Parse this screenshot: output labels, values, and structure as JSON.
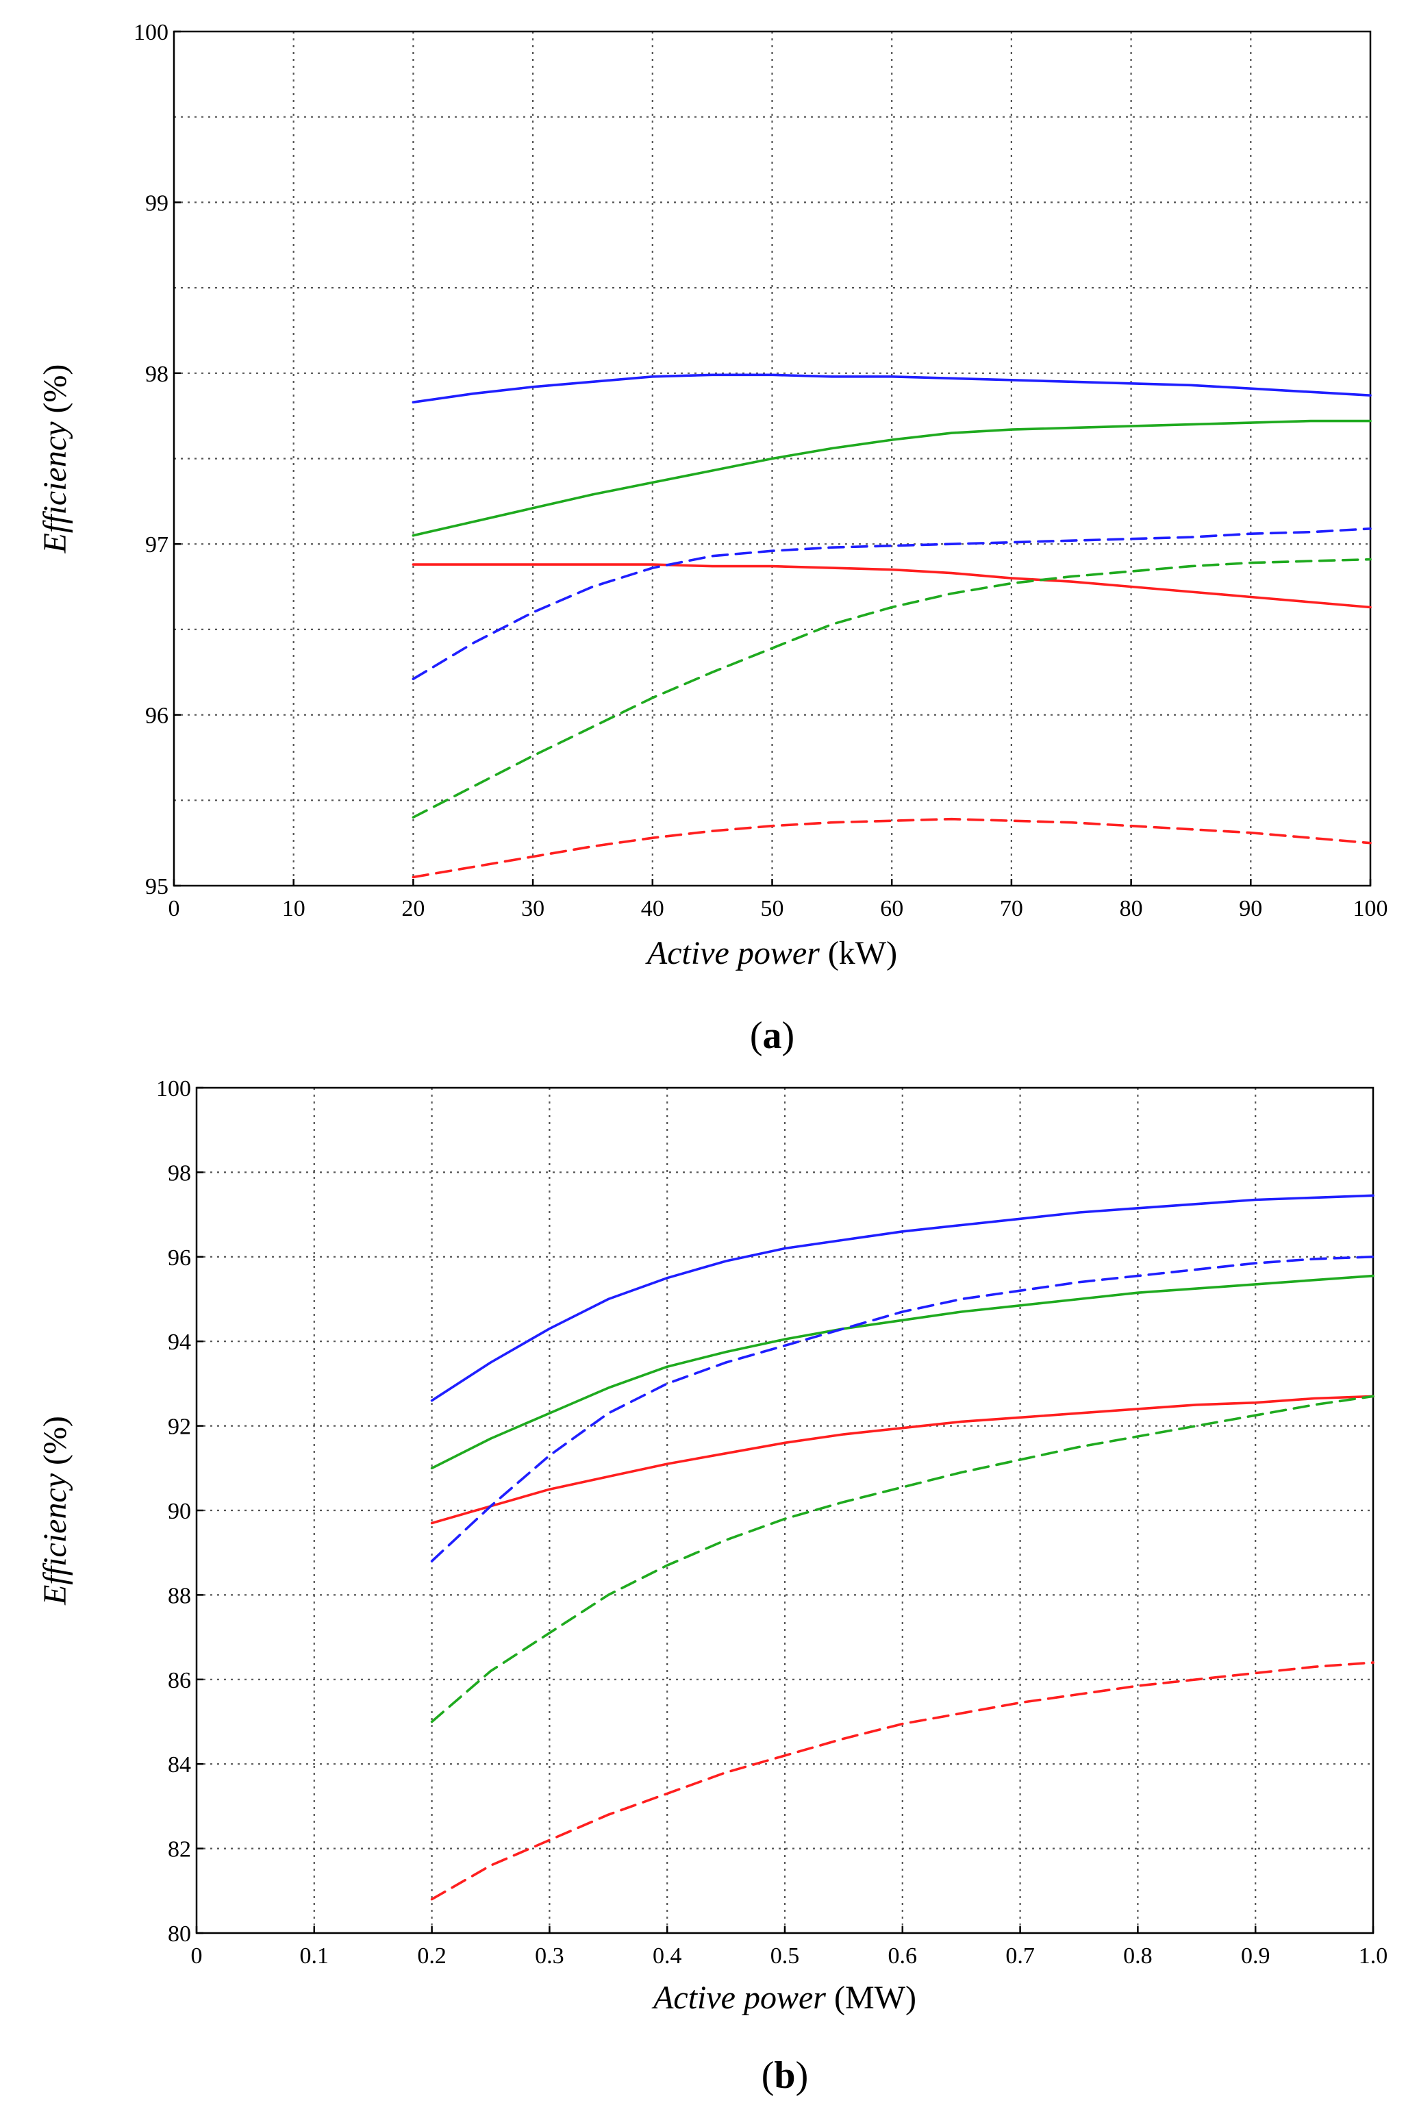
{
  "chart_data": [
    {
      "type": "line",
      "panel_label": "a",
      "xlabel": {
        "italic": "Active power",
        "unit": "(kW)"
      },
      "ylabel": {
        "italic": "Efficiency",
        "unit": "(%)"
      },
      "xlim": [
        0,
        100
      ],
      "ylim": [
        95,
        100
      ],
      "xticks": [
        "0",
        "10",
        "20",
        "30",
        "40",
        "50",
        "60",
        "70",
        "80",
        "90",
        "100"
      ],
      "yticks": [
        "95",
        "96",
        "97",
        "98",
        "99",
        "100"
      ],
      "grid": true,
      "series": [
        {
          "color": "#1f1fff",
          "style": "solid",
          "x": [
            20,
            25,
            30,
            35,
            40,
            45,
            50,
            55,
            60,
            65,
            70,
            75,
            80,
            85,
            90,
            95,
            100
          ],
          "y": [
            97.83,
            97.88,
            97.92,
            97.95,
            97.98,
            97.99,
            97.99,
            97.98,
            97.98,
            97.97,
            97.96,
            97.95,
            97.94,
            97.93,
            97.91,
            97.89,
            97.87
          ]
        },
        {
          "color": "#1faa1f",
          "style": "solid",
          "x": [
            20,
            25,
            30,
            35,
            40,
            45,
            50,
            55,
            60,
            65,
            70,
            75,
            80,
            85,
            90,
            95,
            100
          ],
          "y": [
            97.05,
            97.13,
            97.21,
            97.29,
            97.36,
            97.43,
            97.5,
            97.56,
            97.61,
            97.65,
            97.67,
            97.68,
            97.69,
            97.7,
            97.71,
            97.72,
            97.72
          ]
        },
        {
          "color": "#ff1f1f",
          "style": "solid",
          "x": [
            20,
            25,
            30,
            35,
            40,
            45,
            50,
            55,
            60,
            65,
            70,
            75,
            80,
            85,
            90,
            95,
            100
          ],
          "y": [
            96.88,
            96.88,
            96.88,
            96.88,
            96.88,
            96.87,
            96.87,
            96.86,
            96.85,
            96.83,
            96.8,
            96.78,
            96.75,
            96.72,
            96.69,
            96.66,
            96.63
          ]
        },
        {
          "color": "#1f1fff",
          "style": "dashed",
          "x": [
            20,
            25,
            30,
            35,
            40,
            45,
            50,
            55,
            60,
            65,
            70,
            75,
            80,
            85,
            90,
            95,
            100
          ],
          "y": [
            96.21,
            96.42,
            96.6,
            96.75,
            96.86,
            96.93,
            96.96,
            96.98,
            96.99,
            97.0,
            97.01,
            97.02,
            97.03,
            97.04,
            97.06,
            97.07,
            97.09
          ]
        },
        {
          "color": "#1faa1f",
          "style": "dashed",
          "x": [
            20,
            25,
            30,
            35,
            40,
            45,
            50,
            55,
            60,
            65,
            70,
            75,
            80,
            85,
            90,
            95,
            100
          ],
          "y": [
            95.4,
            95.58,
            95.76,
            95.93,
            96.1,
            96.25,
            96.39,
            96.53,
            96.63,
            96.71,
            96.77,
            96.81,
            96.84,
            96.87,
            96.89,
            96.9,
            96.91
          ]
        },
        {
          "color": "#ff1f1f",
          "style": "dashed",
          "x": [
            20,
            25,
            30,
            35,
            40,
            45,
            50,
            55,
            60,
            65,
            70,
            75,
            80,
            85,
            90,
            95,
            100
          ],
          "y": [
            95.05,
            95.11,
            95.17,
            95.23,
            95.28,
            95.32,
            95.35,
            95.37,
            95.38,
            95.39,
            95.38,
            95.37,
            95.35,
            95.33,
            95.31,
            95.28,
            95.25
          ]
        }
      ]
    },
    {
      "type": "line",
      "panel_label": "b",
      "xlabel": {
        "italic": "Active power",
        "unit": "(MW)"
      },
      "ylabel": {
        "italic": "Efficiency",
        "unit": "(%)"
      },
      "xlim": [
        0,
        1.0
      ],
      "ylim": [
        80,
        100
      ],
      "xticks": [
        "0",
        "0.1",
        "0.2",
        "0.3",
        "0.4",
        "0.5",
        "0.6",
        "0.7",
        "0.8",
        "0.9",
        "1.0"
      ],
      "yticks": [
        "80",
        "82",
        "84",
        "86",
        "88",
        "90",
        "92",
        "94",
        "96",
        "98",
        "100"
      ],
      "grid": true,
      "series": [
        {
          "color": "#1f1fff",
          "style": "solid",
          "x": [
            0.2,
            0.25,
            0.3,
            0.35,
            0.4,
            0.45,
            0.5,
            0.55,
            0.6,
            0.65,
            0.7,
            0.75,
            0.8,
            0.85,
            0.9,
            0.95,
            1.0
          ],
          "y": [
            92.6,
            93.5,
            94.3,
            95.0,
            95.5,
            95.9,
            96.2,
            96.4,
            96.6,
            96.75,
            96.9,
            97.05,
            97.15,
            97.25,
            97.35,
            97.4,
            97.45
          ]
        },
        {
          "color": "#1faa1f",
          "style": "solid",
          "x": [
            0.2,
            0.25,
            0.3,
            0.35,
            0.4,
            0.45,
            0.5,
            0.55,
            0.6,
            0.65,
            0.7,
            0.75,
            0.8,
            0.85,
            0.9,
            0.95,
            1.0
          ],
          "y": [
            91.0,
            91.7,
            92.3,
            92.9,
            93.4,
            93.75,
            94.05,
            94.3,
            94.5,
            94.7,
            94.85,
            95.0,
            95.15,
            95.25,
            95.35,
            95.45,
            95.55
          ]
        },
        {
          "color": "#ff1f1f",
          "style": "solid",
          "x": [
            0.2,
            0.25,
            0.3,
            0.35,
            0.4,
            0.45,
            0.5,
            0.55,
            0.6,
            0.65,
            0.7,
            0.75,
            0.8,
            0.85,
            0.9,
            0.95,
            1.0
          ],
          "y": [
            89.7,
            90.1,
            90.5,
            90.8,
            91.1,
            91.35,
            91.6,
            91.8,
            91.95,
            92.1,
            92.2,
            92.3,
            92.4,
            92.5,
            92.55,
            92.65,
            92.7
          ]
        },
        {
          "color": "#1f1fff",
          "style": "dashed",
          "x": [
            0.2,
            0.25,
            0.3,
            0.35,
            0.4,
            0.45,
            0.5,
            0.55,
            0.6,
            0.65,
            0.7,
            0.75,
            0.8,
            0.85,
            0.9,
            0.95,
            1.0
          ],
          "y": [
            88.8,
            90.1,
            91.3,
            92.3,
            93.0,
            93.5,
            93.9,
            94.3,
            94.7,
            95.0,
            95.2,
            95.4,
            95.55,
            95.7,
            95.85,
            95.95,
            96.0
          ]
        },
        {
          "color": "#1faa1f",
          "style": "dashed",
          "x": [
            0.2,
            0.25,
            0.3,
            0.35,
            0.4,
            0.45,
            0.5,
            0.55,
            0.6,
            0.65,
            0.7,
            0.75,
            0.8,
            0.85,
            0.9,
            0.95,
            1.0
          ],
          "y": [
            85.0,
            86.2,
            87.1,
            88.0,
            88.7,
            89.3,
            89.8,
            90.2,
            90.55,
            90.9,
            91.2,
            91.5,
            91.75,
            92.0,
            92.25,
            92.5,
            92.7
          ]
        },
        {
          "color": "#ff1f1f",
          "style": "dashed",
          "x": [
            0.2,
            0.25,
            0.3,
            0.35,
            0.4,
            0.45,
            0.5,
            0.55,
            0.6,
            0.65,
            0.7,
            0.75,
            0.8,
            0.85,
            0.9,
            0.95,
            1.0
          ],
          "y": [
            80.8,
            81.6,
            82.2,
            82.8,
            83.3,
            83.8,
            84.2,
            84.6,
            84.95,
            85.2,
            85.45,
            85.65,
            85.85,
            86.0,
            86.15,
            86.3,
            86.4
          ]
        }
      ]
    }
  ]
}
